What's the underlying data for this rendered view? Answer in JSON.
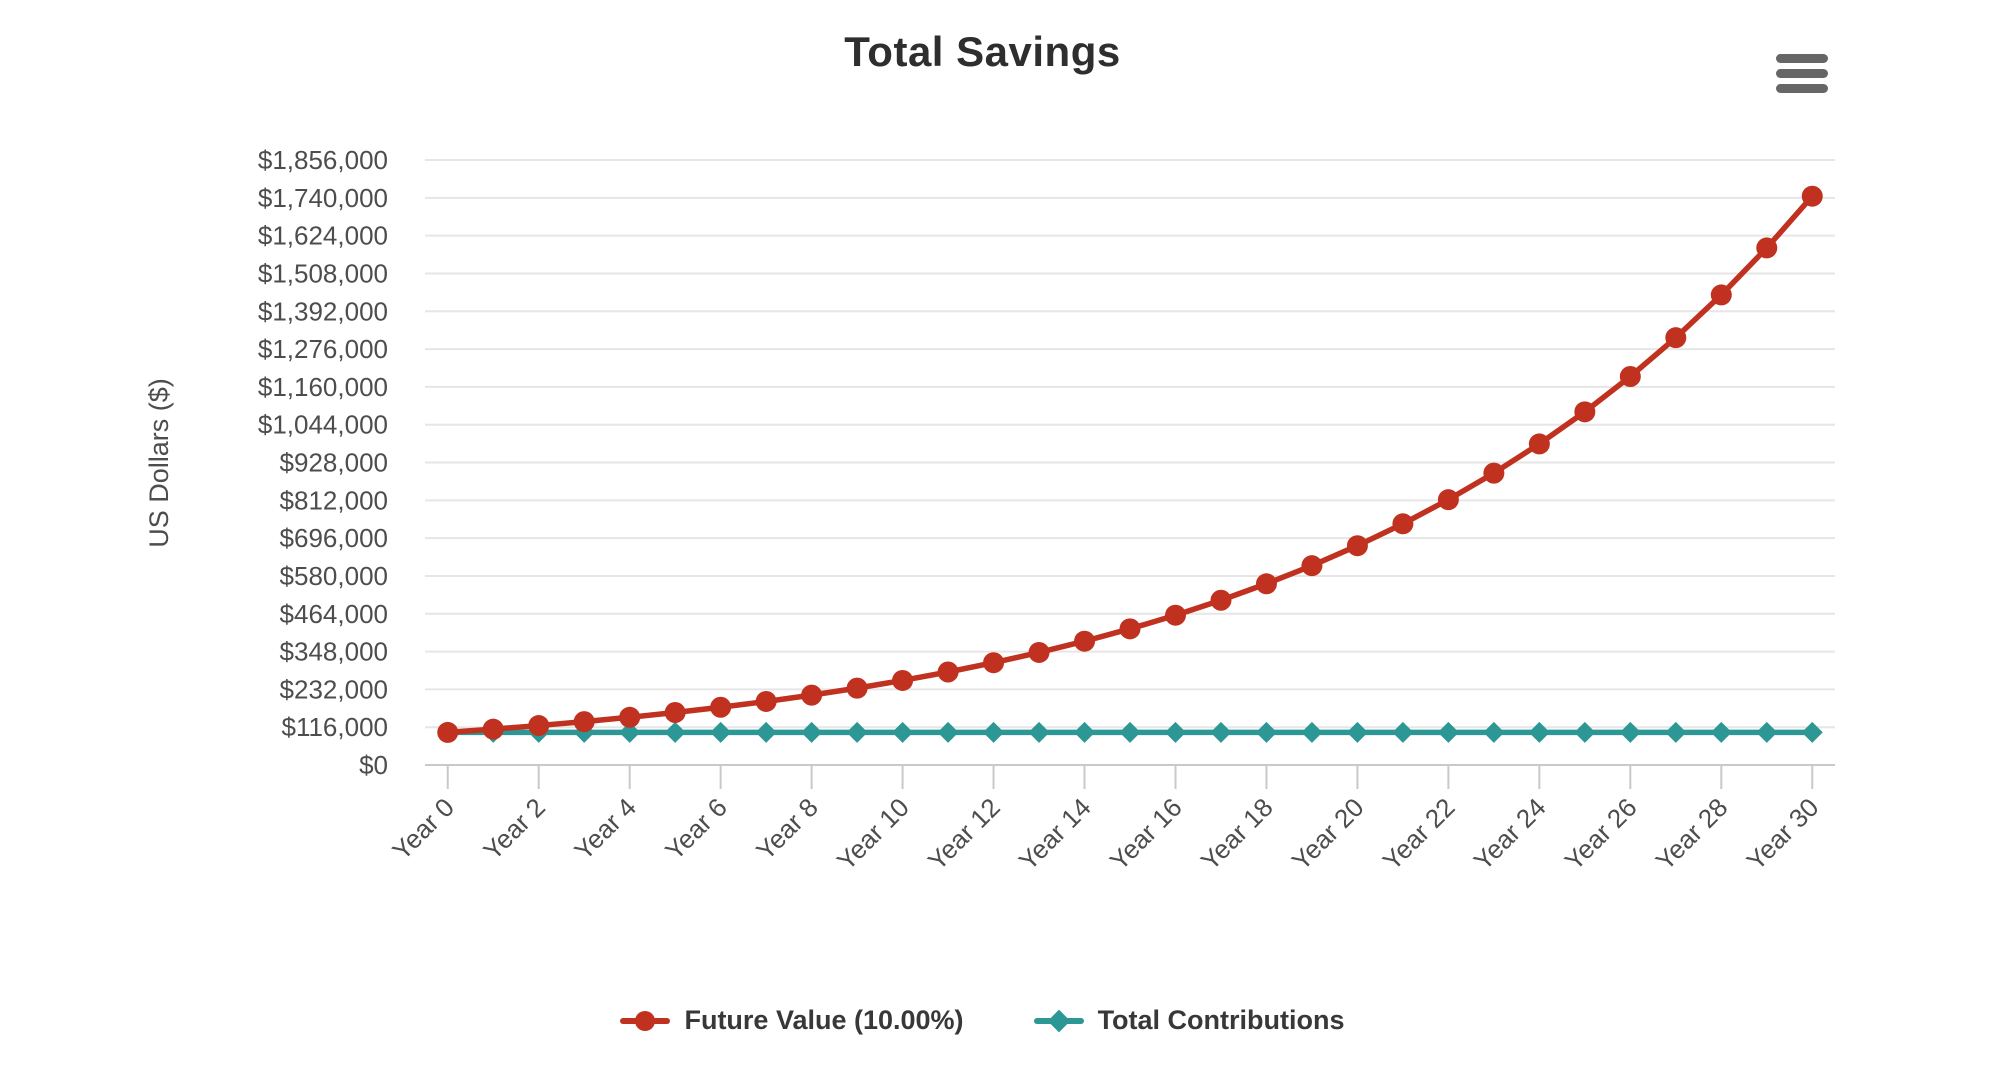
{
  "header": {
    "title": "Total Savings"
  },
  "toolbar": {
    "menu_icon": "hamburger-menu-icon"
  },
  "chart_data": {
    "type": "line",
    "title": "Total Savings",
    "xlabel": "",
    "ylabel": "US Dollars ($)",
    "x": [
      0,
      1,
      2,
      3,
      4,
      5,
      6,
      7,
      8,
      9,
      10,
      11,
      12,
      13,
      14,
      15,
      16,
      17,
      18,
      19,
      20,
      21,
      22,
      23,
      24,
      25,
      26,
      27,
      28,
      29,
      30
    ],
    "x_tick_labels": [
      "Year 0",
      "Year 2",
      "Year 4",
      "Year 6",
      "Year 8",
      "Year 10",
      "Year 12",
      "Year 14",
      "Year 16",
      "Year 18",
      "Year 20",
      "Year 22",
      "Year 24",
      "Year 26",
      "Year 28",
      "Year 30"
    ],
    "x_tick_positions": [
      0,
      2,
      4,
      6,
      8,
      10,
      12,
      14,
      16,
      18,
      20,
      22,
      24,
      26,
      28,
      30
    ],
    "y_tick_values": [
      0,
      116000,
      232000,
      348000,
      464000,
      580000,
      696000,
      812000,
      928000,
      1044000,
      1160000,
      1276000,
      1392000,
      1508000,
      1624000,
      1740000,
      1856000
    ],
    "y_tick_labels": [
      "$0",
      "$116,000",
      "$232,000",
      "$348,000",
      "$464,000",
      "$580,000",
      "$696,000",
      "$812,000",
      "$928,000",
      "$1,044,000",
      "$1,160,000",
      "$1,276,000",
      "$1,392,000",
      "$1,508,000",
      "$1,624,000",
      "$1,740,000",
      "$1,856,000"
    ],
    "ylim": [
      0,
      1856000
    ],
    "grid": "horizontal",
    "legend_position": "bottom-center",
    "series": [
      {
        "name": "Future Value (10.00%)",
        "color": "#c03120",
        "marker": "circle",
        "values": [
          100000,
          110000,
          121000,
          133100,
          146410,
          161051,
          177156,
          194872,
          214359,
          235795,
          259374,
          285312,
          313843,
          345227,
          379750,
          417725,
          459497,
          505447,
          555992,
          611591,
          672750,
          740025,
          814027,
          895430,
          984973,
          1083471,
          1191818,
          1310999,
          1442099,
          1586309,
          1744940
        ]
      },
      {
        "name": "Total Contributions",
        "color": "#2d9795",
        "marker": "diamond",
        "values": [
          100000,
          100000,
          100000,
          100000,
          100000,
          100000,
          100000,
          100000,
          100000,
          100000,
          100000,
          100000,
          100000,
          100000,
          100000,
          100000,
          100000,
          100000,
          100000,
          100000,
          100000,
          100000,
          100000,
          100000,
          100000,
          100000,
          100000,
          100000,
          100000,
          100000,
          100000
        ]
      }
    ],
    "colors": {
      "gridline": "#e6e6e6",
      "axis_line": "#c9c9c9",
      "tick_mark": "#c9c9c9",
      "axis_label": "#4d4d4d",
      "title_text": "#2e2e2e",
      "legend_text": "#383838"
    }
  },
  "legend": {
    "items": [
      {
        "label": "Future Value (10.00%)"
      },
      {
        "label": "Total Contributions"
      }
    ]
  }
}
